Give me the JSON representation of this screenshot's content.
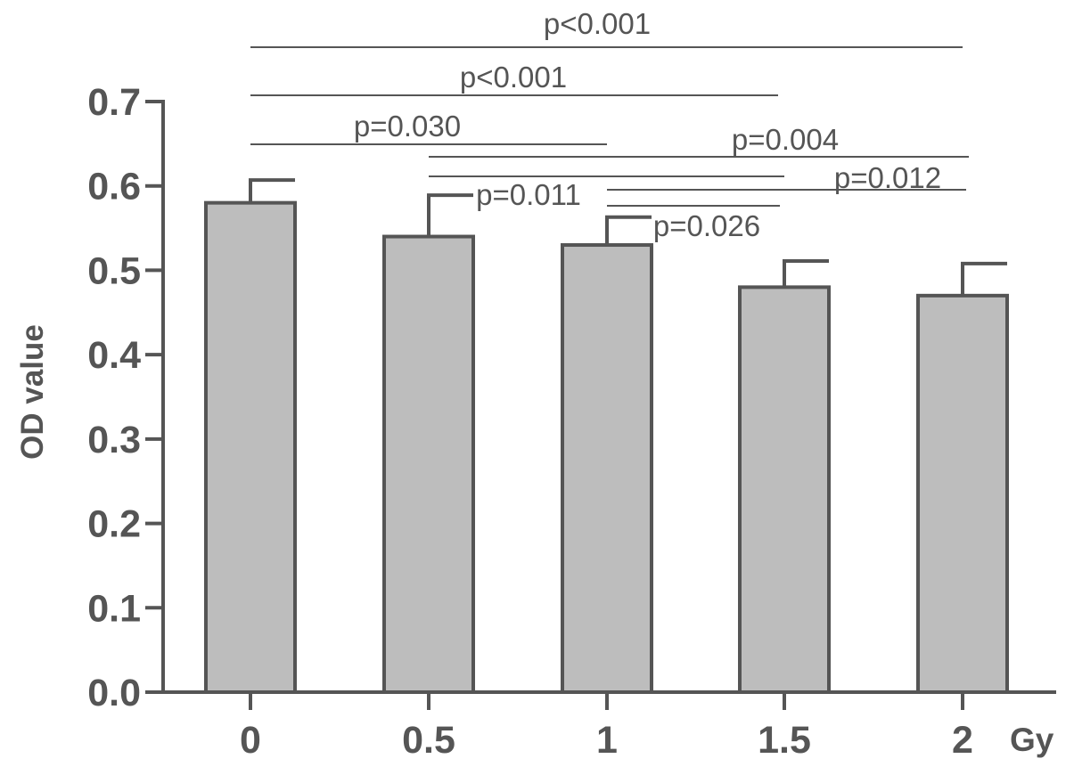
{
  "chart_data": {
    "type": "bar",
    "categories": [
      "0",
      "0.5",
      "1",
      "1.5",
      "2"
    ],
    "x_unit": "Gy",
    "values": [
      0.58,
      0.54,
      0.53,
      0.48,
      0.47
    ],
    "error_upper": [
      0.607,
      0.589,
      0.563,
      0.511,
      0.508
    ],
    "ylabel": "OD value",
    "ylim": [
      0,
      0.7
    ],
    "yticks": [
      "0.0",
      "0.1",
      "0.2",
      "0.3",
      "0.4",
      "0.5",
      "0.6",
      "0.7"
    ],
    "grid": false,
    "bar_color": "#bdbdbd",
    "line_color": "#555555",
    "annotations": [
      {
        "text": "p<0.001",
        "from": "0",
        "to": "2"
      },
      {
        "text": "p<0.001",
        "from": "0",
        "to": "1.5"
      },
      {
        "text": "p=0.030",
        "from": "0",
        "to": "1"
      },
      {
        "text": "p=0.004",
        "from": "0.5",
        "to": "2"
      },
      {
        "text": "p=0.011",
        "from": "0.5",
        "to": "1.5"
      },
      {
        "text": "p=0.012",
        "from": "1",
        "to": "2"
      },
      {
        "text": "p=0.026",
        "from": "1",
        "to": "1.5"
      }
    ]
  }
}
